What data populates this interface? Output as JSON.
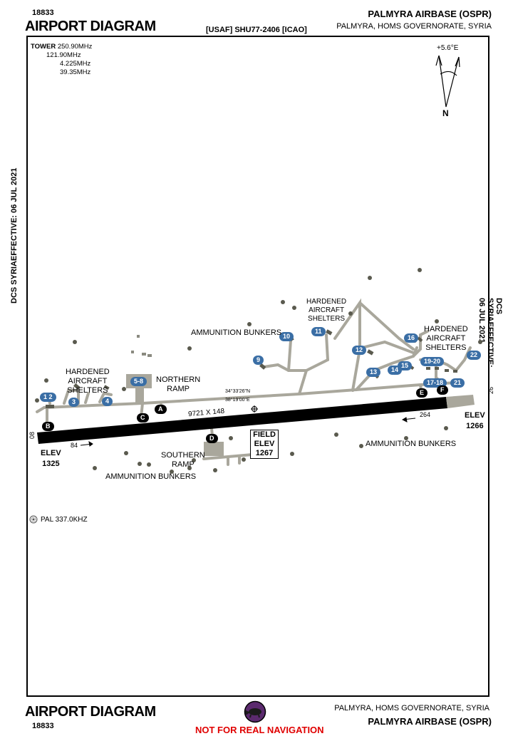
{
  "header": {
    "chart_number": "18833",
    "title": "AIRPORT DIAGRAM",
    "ident_line": "[USAF] SHU77-2406 [ICAO]",
    "airport_name": "PALMYRA AIRBASE (OSPR)",
    "location": "PALMYRA, HOMS GOVERNORATE, SYRIA"
  },
  "footer": {
    "title": "AIRPORT DIAGRAM",
    "chart_number": "18833",
    "location": "PALMYRA, HOMS GOVERNORATE, SYRIA",
    "airport_name": "PALMYRA AIRBASE (OSPR)",
    "warning": "NOT FOR REAL NAVIGATION",
    "warning_color": "#e00000"
  },
  "side_text": {
    "left": "DCS SYRIAEFFECTIVE: 06 JUL 2021",
    "right": "DCS SYRIAEFFECTIVE: 06 JUL 2021"
  },
  "frequencies": {
    "label": "TOWER",
    "values": [
      "250.90MHz",
      "121.90MHz",
      "4.225MHz",
      "39.35MHz"
    ]
  },
  "compass": {
    "variation": "+5.6°E",
    "north": "N"
  },
  "runway": {
    "dimensions": "9721 X 148",
    "end_west": "08",
    "end_east": "26",
    "heading_west": "84",
    "heading_east": "264",
    "elev_west_label": "ELEV",
    "elev_west_value": "1325",
    "elev_east_label": "ELEV",
    "elev_east_value": "1266"
  },
  "field_elev": {
    "line1": "FIELD",
    "line2": "ELEV",
    "value": "1267"
  },
  "coordinates": {
    "lat": "34°33'26\"N",
    "lon": "38°19'00\"E"
  },
  "navaid": "PAL 337.0KHZ",
  "taxiways": [
    "A",
    "B",
    "C",
    "D",
    "E",
    "F"
  ],
  "shelters": [
    "1",
    "2",
    "3",
    "4",
    "5-8",
    "9",
    "10",
    "11",
    "12",
    "13",
    "14",
    "15",
    "16",
    "17-18",
    "19-20",
    "21",
    "22"
  ],
  "labels": {
    "hardened_west": [
      "HARDENED",
      "AIRCRAFT",
      "SHELTERS"
    ],
    "hardened_mid": [
      "HARDENED",
      "AIRCRAFT",
      "SHELTERS"
    ],
    "hardened_east": [
      "HARDENED",
      "AIRCRAFT",
      "SHELTERS"
    ],
    "northern_ramp": [
      "NORTHERN",
      "RAMP"
    ],
    "southern_ramp": [
      "SOUTHERN",
      "RAMP"
    ],
    "ammo_north": "AMMUNITION BUNKERS",
    "ammo_south_west": "AMMUNITION BUNKERS",
    "ammo_south_east": "AMMUNITION BUNKERS"
  },
  "colors": {
    "taxiway": "#a9a79c",
    "runway": "#000000",
    "shelter_badge": "#3a6ea5",
    "bunker": "#5a5a4e",
    "logo": "#5b2a6e"
  }
}
